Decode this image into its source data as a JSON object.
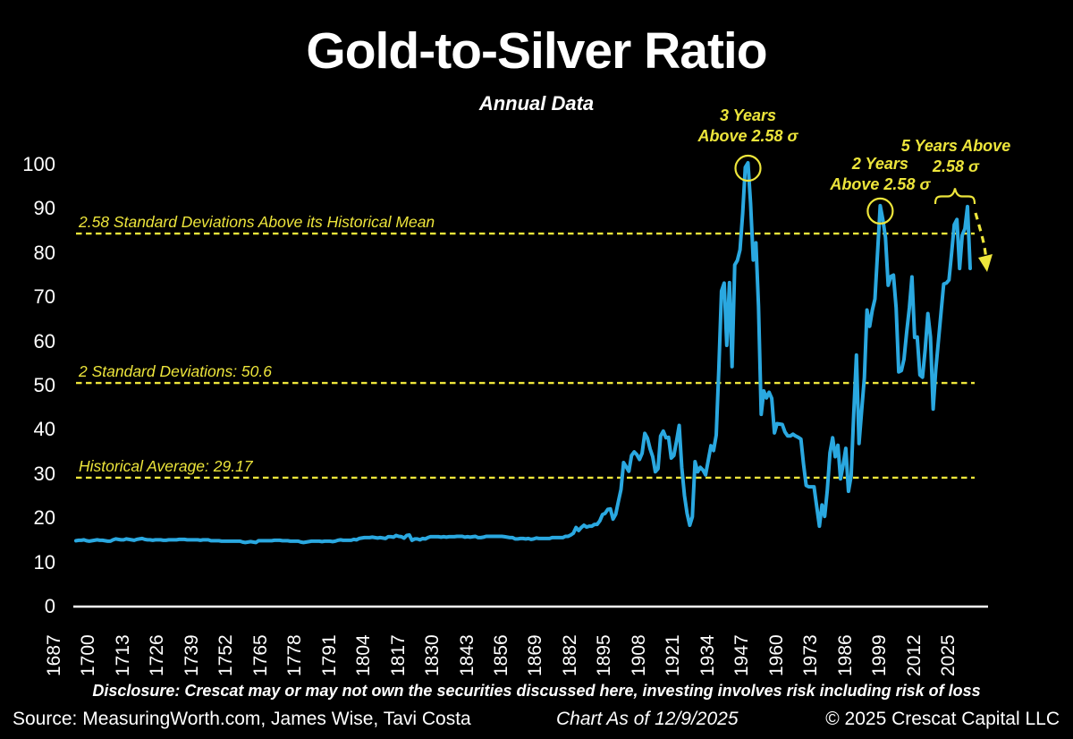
{
  "title": "Gold-to-Silver Ratio",
  "subtitle": "Annual Data",
  "colors": {
    "background": "#000000",
    "line": "#2AA8E0",
    "accent": "#EDE53B",
    "text": "#FFFFFF"
  },
  "annotations": {
    "peak_1941": {
      "line1": "3 Years",
      "line2": "Above 2.58 σ",
      "year": 1941
    },
    "peak_1991": {
      "line1": "2 Years",
      "line2": "Above 2.58 σ",
      "year": 1991
    },
    "recent": {
      "line1": "5 Years Above",
      "line2": "2.58 σ"
    }
  },
  "footer": {
    "disclosure": "Disclosure: Crescat may or may not own the securities discussed here, investing involves risk including risk of loss",
    "source": "Source: MeasuringWorth.com, James Wise, Tavi Costa",
    "as_of": "Chart As of 12/9/2025",
    "copyright": "© 2025 Crescat Capital LLC"
  },
  "chart_data": {
    "type": "line",
    "title": "Gold-to-Silver Ratio",
    "subtitle": "Annual Data",
    "xlabel": "",
    "ylabel": "",
    "x_start": 1687,
    "x_end": 2025,
    "x_tick_interval": 13,
    "x_ticks": [
      1687,
      1700,
      1713,
      1726,
      1739,
      1752,
      1765,
      1778,
      1791,
      1804,
      1817,
      1830,
      1843,
      1856,
      1869,
      1882,
      1895,
      1908,
      1921,
      1934,
      1947,
      1960,
      1973,
      1986,
      1999,
      2012,
      2025
    ],
    "y_ticks": [
      0,
      10,
      20,
      30,
      40,
      50,
      60,
      70,
      80,
      90,
      100
    ],
    "ylim": [
      0,
      105
    ],
    "grid": false,
    "legend": "none",
    "reference_lines": [
      {
        "label": "2.58 Standard Deviations Above its Historical Mean",
        "value": 84.4
      },
      {
        "label": "2 Standard Deviations: 50.6",
        "value": 50.6
      },
      {
        "label": "Historical Average: 29.17",
        "value": 29.17
      }
    ],
    "series": [
      {
        "name": "Gold-to-Silver Ratio (annual)",
        "x_start": 1687,
        "values": [
          14.9,
          15.0,
          15.0,
          15.1,
          14.9,
          14.8,
          14.9,
          15.0,
          15.1,
          15.0,
          15.0,
          14.9,
          14.8,
          14.8,
          15.1,
          15.3,
          15.2,
          15.1,
          15.1,
          15.3,
          15.2,
          15.1,
          15.0,
          15.2,
          15.3,
          15.4,
          15.2,
          15.1,
          15.1,
          15.0,
          15.1,
          15.1,
          15.1,
          15.0,
          15.0,
          15.1,
          15.1,
          15.1,
          15.1,
          15.2,
          15.2,
          15.2,
          15.1,
          15.1,
          15.1,
          15.1,
          15.1,
          15.0,
          15.1,
          15.1,
          15.1,
          14.9,
          14.9,
          14.9,
          14.9,
          14.8,
          14.8,
          14.8,
          14.8,
          14.8,
          14.8,
          14.8,
          14.8,
          14.6,
          14.5,
          14.6,
          14.7,
          14.6,
          14.5,
          14.9,
          14.9,
          14.9,
          14.9,
          14.9,
          14.9,
          15.0,
          15.0,
          15.0,
          14.9,
          14.9,
          14.9,
          14.8,
          14.8,
          14.8,
          14.8,
          14.6,
          14.5,
          14.6,
          14.7,
          14.8,
          14.8,
          14.8,
          14.8,
          14.7,
          14.8,
          14.8,
          14.8,
          14.7,
          14.8,
          15.0,
          15.1,
          15.0,
          15.0,
          15.0,
          15.0,
          15.2,
          15.1,
          15.4,
          15.5,
          15.6,
          15.6,
          15.6,
          15.7,
          15.6,
          15.5,
          15.6,
          15.5,
          15.4,
          15.8,
          15.8,
          15.7,
          16.1,
          15.9,
          15.8,
          15.5,
          16.1,
          16.2,
          15.0,
          15.3,
          15.3,
          15.1,
          15.4,
          15.3,
          15.6,
          15.8,
          15.8,
          15.8,
          15.8,
          15.7,
          15.8,
          15.7,
          15.8,
          15.8,
          15.8,
          15.9,
          15.9,
          15.9,
          15.7,
          15.8,
          15.7,
          15.8,
          15.9,
          15.6,
          15.6,
          15.7,
          15.9,
          15.9,
          15.9,
          15.9,
          15.9,
          15.9,
          15.9,
          15.8,
          15.7,
          15.6,
          15.6,
          15.3,
          15.3,
          15.4,
          15.4,
          15.3,
          15.4,
          15.2,
          15.3,
          15.5,
          15.4,
          15.4,
          15.4,
          15.4,
          15.4,
          15.6,
          15.6,
          15.6,
          15.6,
          15.6,
          15.9,
          15.9,
          16.2,
          16.6,
          17.9,
          17.2,
          17.9,
          18.4,
          18.0,
          18.2,
          18.2,
          18.6,
          18.6,
          19.4,
          20.8,
          21.1,
          22.0,
          22.1,
          19.8,
          20.9,
          23.7,
          26.5,
          32.6,
          31.6,
          30.6,
          34.2,
          35.0,
          34.4,
          33.3,
          34.7,
          39.2,
          38.1,
          35.7,
          33.9,
          30.5,
          31.2,
          38.6,
          39.7,
          38.2,
          38.3,
          33.6,
          34.2,
          37.4,
          41.0,
          31.4,
          25.1,
          21.1,
          18.4,
          20.3,
          32.8,
          30.5,
          31.5,
          30.9,
          29.8,
          33.1,
          36.4,
          35.3,
          38.8,
          53.7,
          71.4,
          73.2,
          59.1,
          73.3,
          54.3,
          77.3,
          78.3,
          80.7,
          89.0,
          99.4,
          100.4,
          91.3,
          78.4,
          82.3,
          67.9,
          43.5,
          48.8,
          47.2,
          48.5,
          47.1,
          39.3,
          41.4,
          41.3,
          41.2,
          39.5,
          38.6,
          38.6,
          39.0,
          38.6,
          38.3,
          37.9,
          32.3,
          27.4,
          27.1,
          27.1,
          27.1,
          22.6,
          18.2,
          23.0,
          20.4,
          26.3,
          34.8,
          38.2,
          33.9,
          36.5,
          28.9,
          32.1,
          35.8,
          26.1,
          29.6,
          43.7,
          56.9,
          36.9,
          44.5,
          51.8,
          67.1,
          63.4,
          67.0,
          69.6,
          80.0,
          90.7,
          87.5,
          83.5,
          72.7,
          74.7,
          75.0,
          67.6,
          53.1,
          53.4,
          56.0,
          62.1,
          67.6,
          74.6,
          60.9,
          61.0,
          52.4,
          51.9,
          58.2,
          66.3,
          61.0,
          44.7,
          53.5,
          60.1,
          66.7,
          73.0,
          73.2,
          73.9,
          80.1,
          86.4,
          87.6,
          76.5,
          84.0,
          85.5,
          90.5,
          76.5
        ]
      }
    ]
  }
}
